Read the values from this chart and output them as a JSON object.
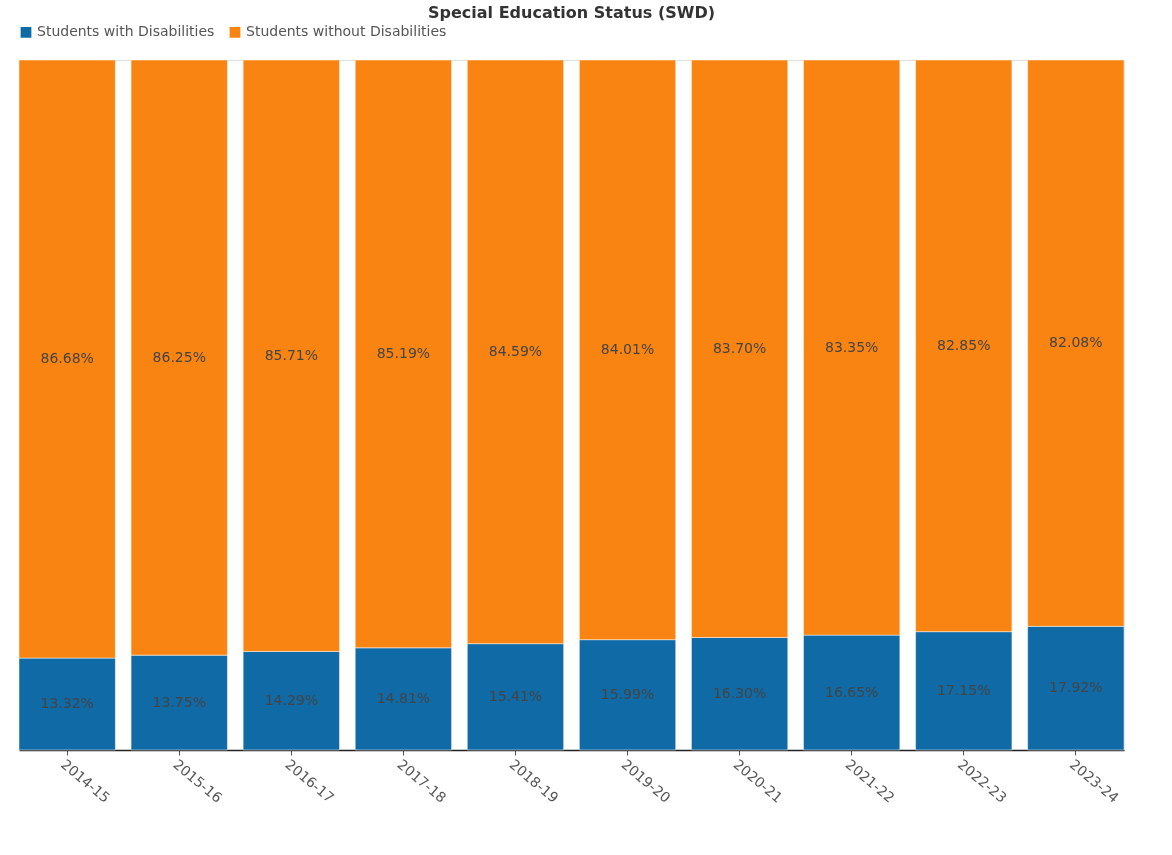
{
  "chart_data": {
    "type": "bar",
    "title": "Special Education Status (SWD)",
    "stacked": true,
    "legend": "top",
    "tick_labels": "x",
    "categories": [
      "2014-15",
      "2015-16",
      "2016-17",
      "2017-18",
      "2018-19",
      "2019-20",
      "2020-21",
      "2021-22",
      "2022-23",
      "2023-24"
    ],
    "series": [
      {
        "name": "Students with Disabilities",
        "color": "#0f6aa6",
        "values": [
          13.32,
          13.75,
          14.29,
          14.81,
          15.41,
          15.99,
          16.3,
          16.65,
          17.15,
          17.92
        ],
        "value_labels": [
          "13.32%",
          "13.75%",
          "14.29%",
          "14.81%",
          "15.41%",
          "15.99%",
          "16.30%",
          "16.65%",
          "17.15%",
          "17.92%"
        ]
      },
      {
        "name": "Students without Disabilities",
        "color": "#f98411",
        "values": [
          86.68,
          86.25,
          85.71,
          85.19,
          84.59,
          84.01,
          83.7,
          83.35,
          82.85,
          82.08
        ],
        "value_labels": [
          "86.68%",
          "86.25%",
          "85.71%",
          "85.19%",
          "84.59%",
          "84.01%",
          "83.70%",
          "83.35%",
          "82.85%",
          "82.08%"
        ]
      }
    ]
  }
}
